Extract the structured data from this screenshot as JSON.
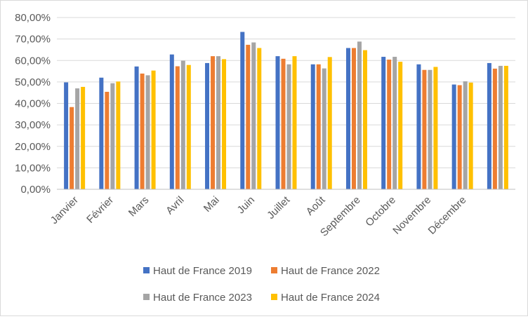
{
  "chart_data": {
    "type": "bar",
    "title": "",
    "xlabel": "",
    "ylabel": "",
    "ylim": [
      0,
      80
    ],
    "yticks": [
      "0,00%",
      "10,00%",
      "20,00%",
      "30,00%",
      "40,00%",
      "50,00%",
      "60,00%",
      "70,00%",
      "80,00%"
    ],
    "categories": [
      "Janvier",
      "Février",
      "Mars",
      "Avril",
      "Mai",
      "Juin",
      "Juillet",
      "Août",
      "Septembre",
      "Octobre",
      "Novembre",
      "Décembre",
      ""
    ],
    "grid": "horizontal",
    "legend_position": "bottom",
    "series": [
      {
        "name": "Haut de France 2019",
        "color": "#4472C4",
        "values": [
          49.8,
          52.0,
          57.2,
          62.8,
          58.8,
          73.3,
          62.0,
          58.2,
          65.8,
          61.7,
          58.2,
          48.8,
          58.8
        ]
      },
      {
        "name": "Haut de France 2022",
        "color": "#ED7D31",
        "values": [
          38.3,
          45.4,
          53.9,
          57.3,
          62.0,
          67.3,
          60.8,
          58.2,
          65.8,
          60.4,
          55.6,
          48.5,
          56.2
        ]
      },
      {
        "name": "Haut de France 2023",
        "color": "#A5A5A5",
        "values": [
          47.0,
          49.4,
          53.1,
          59.9,
          62.0,
          68.4,
          58.2,
          56.3,
          68.8,
          61.7,
          55.6,
          50.3,
          57.5
        ]
      },
      {
        "name": "Haut de France 2024",
        "color": "#FFC000",
        "values": [
          47.7,
          50.2,
          55.3,
          57.9,
          60.6,
          65.8,
          62.0,
          61.6,
          64.8,
          59.4,
          57.0,
          49.7,
          57.5
        ]
      }
    ]
  }
}
